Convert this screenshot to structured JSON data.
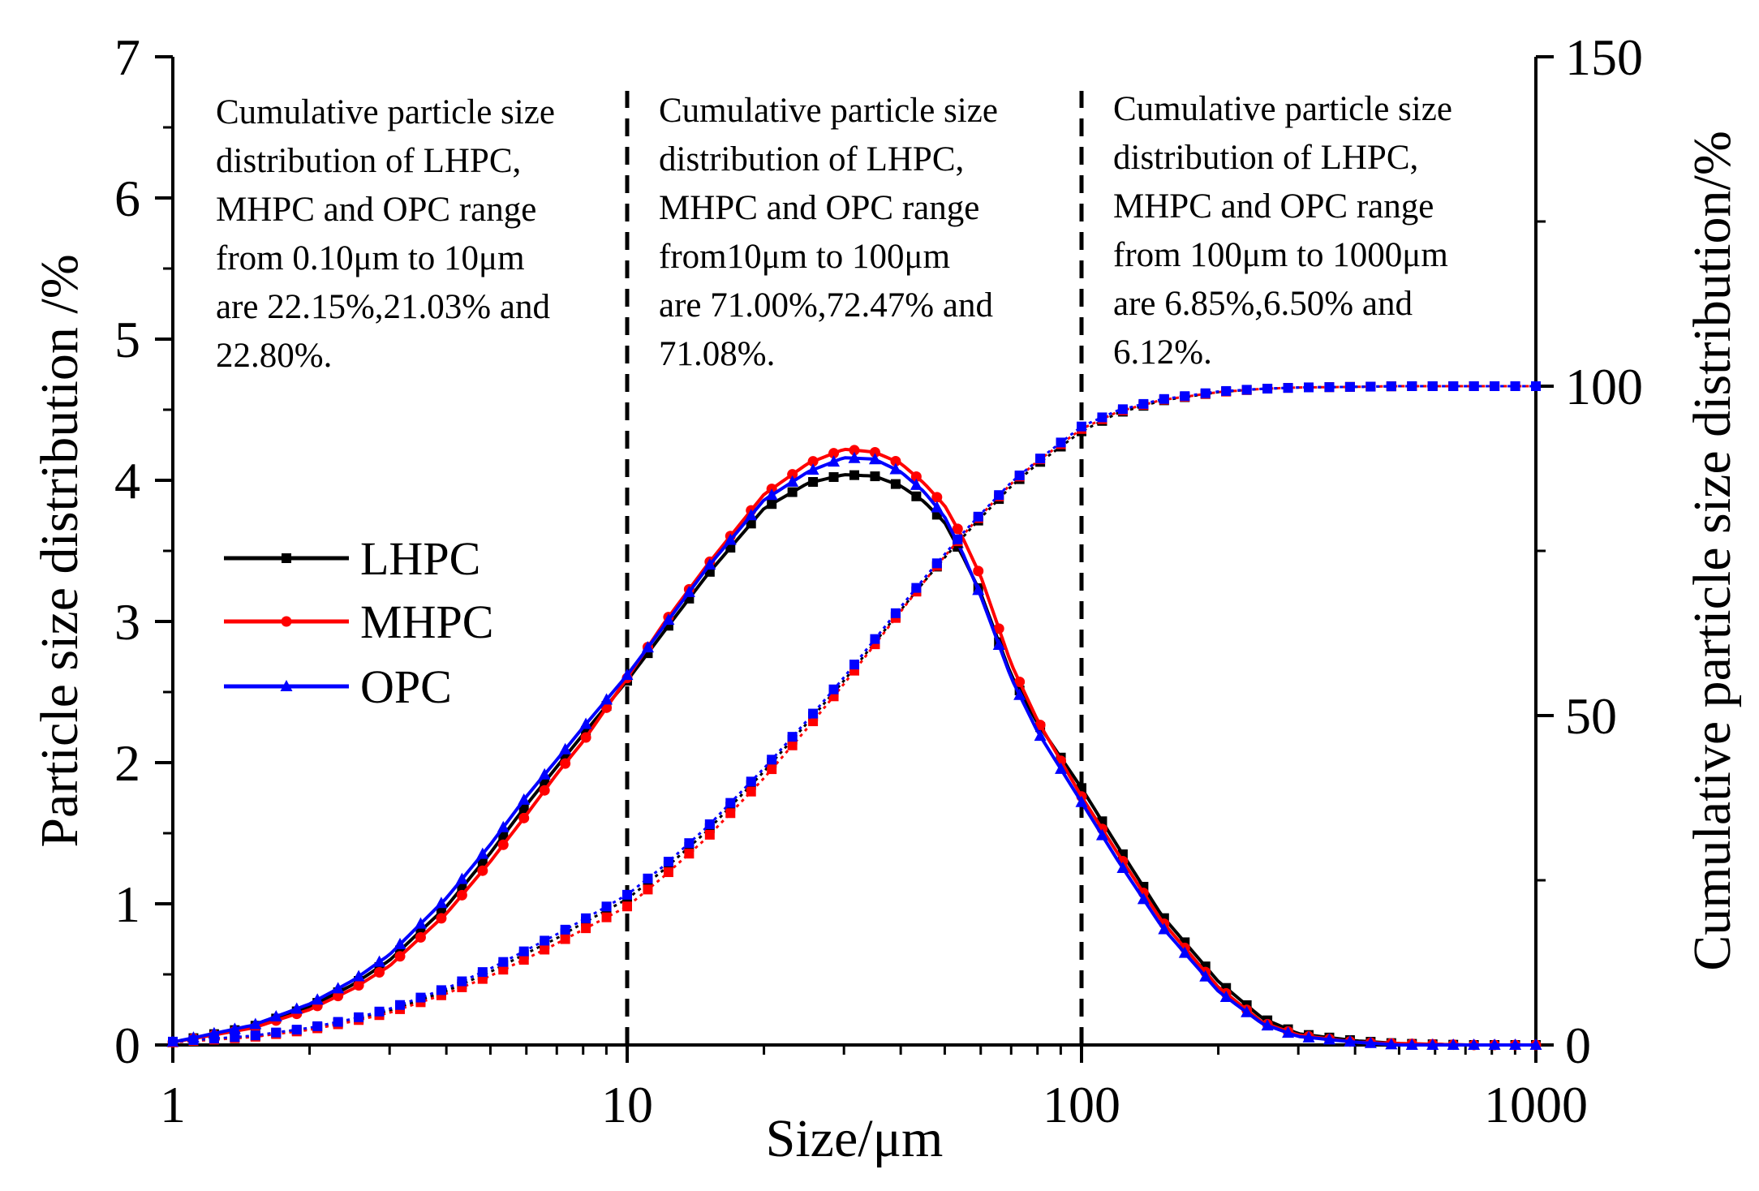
{
  "chart_data": {
    "type": "line",
    "x_scale": "log",
    "xlim": [
      1,
      1000
    ],
    "ylim": [
      0,
      7
    ],
    "y2lim": [
      0,
      150
    ],
    "xlabel": "Size/μm",
    "ylabel": "Particle size distribution /%",
    "y2label": "Cumulative particle size distribution/%",
    "x_ticks": [
      "1",
      "10",
      "100",
      "1000"
    ],
    "y_ticks": [
      "0",
      "1",
      "2",
      "3",
      "4",
      "5",
      "6",
      "7"
    ],
    "y2_ticks": [
      "0",
      "50",
      "100",
      "150"
    ],
    "vlines": [
      10,
      100
    ],
    "legend": {
      "placement": "center-left",
      "entries": [
        "LHPC",
        "MHPC",
        "OPC"
      ]
    },
    "colors": {
      "LHPC": "#000000",
      "MHPC": "#ff0000",
      "OPC": "#0000ff"
    },
    "annotations": [
      [
        "Cumulative particle size",
        " distribution of LHPC,",
        "MHPC and OPC range",
        " from 0.10μm to 10μm",
        "are 22.15%,21.03% and",
        "22.80%."
      ],
      [
        "Cumulative particle size",
        " distribution of LHPC,",
        "MHPC and OPC range",
        " from10μm to 100μm",
        "are 71.00%,72.47% and",
        "71.08%."
      ],
      [
        "Cumulative particle size",
        " distribution of LHPC,",
        "MHPC and OPC range",
        " from 100μm to 1000μm",
        "are 6.85%,6.50% and",
        "6.12%."
      ]
    ],
    "distribution": {
      "x": [
        1,
        1.5,
        2,
        2.5,
        3,
        4,
        5,
        6,
        7,
        8,
        10,
        12,
        15,
        20,
        25,
        30,
        35,
        40,
        45,
        50,
        55,
        60,
        70,
        80,
        100,
        120,
        150,
        200,
        250,
        300,
        400,
        500,
        700,
        1000
      ],
      "series": [
        {
          "name": "LHPC",
          "values": [
            0.02,
            0.13,
            0.27,
            0.43,
            0.6,
            0.98,
            1.36,
            1.7,
            1.97,
            2.2,
            2.58,
            2.92,
            3.33,
            3.8,
            3.98,
            4.04,
            4.03,
            3.96,
            3.85,
            3.7,
            3.45,
            3.2,
            2.62,
            2.28,
            1.82,
            1.41,
            0.92,
            0.45,
            0.19,
            0.08,
            0.03,
            0.01,
            0.0,
            0.0
          ]
        },
        {
          "name": "MHPC",
          "values": [
            0.02,
            0.12,
            0.25,
            0.4,
            0.56,
            0.93,
            1.3,
            1.63,
            1.92,
            2.15,
            2.6,
            2.98,
            3.4,
            3.9,
            4.12,
            4.22,
            4.2,
            4.12,
            3.98,
            3.82,
            3.58,
            3.32,
            2.7,
            2.3,
            1.76,
            1.36,
            0.88,
            0.41,
            0.16,
            0.07,
            0.02,
            0.01,
            0.0,
            0.0
          ]
        },
        {
          "name": "OPC",
          "values": [
            0.02,
            0.14,
            0.29,
            0.46,
            0.64,
            1.04,
            1.42,
            1.76,
            2.02,
            2.25,
            2.62,
            2.96,
            3.38,
            3.86,
            4.06,
            4.16,
            4.15,
            4.06,
            3.92,
            3.74,
            3.47,
            3.18,
            2.6,
            2.22,
            1.72,
            1.31,
            0.84,
            0.38,
            0.15,
            0.06,
            0.02,
            0.0,
            0.0,
            0.0
          ]
        }
      ]
    },
    "cumulative": {
      "x": [
        1,
        1.5,
        2,
        2.5,
        3,
        4,
        5,
        6,
        7,
        8,
        10,
        12,
        15,
        20,
        25,
        30,
        35,
        40,
        45,
        50,
        55,
        60,
        70,
        80,
        100,
        120,
        150,
        200,
        250,
        300,
        400,
        500,
        700,
        1000
      ],
      "series": [
        {
          "name": "LHPC",
          "values": [
            0.5,
            1.3,
            2.5,
            3.8,
            5.2,
            8.2,
            11.1,
            13.9,
            16.2,
            18.5,
            22.15,
            26.5,
            32.5,
            41.5,
            49.0,
            55.3,
            61.0,
            66.0,
            70.3,
            74.0,
            77.2,
            80.0,
            84.8,
            88.2,
            93.15,
            95.9,
            97.8,
            99.1,
            99.6,
            99.8,
            99.9,
            100,
            100,
            100
          ]
        },
        {
          "name": "MHPC",
          "values": [
            0.4,
            1.2,
            2.3,
            3.6,
            4.9,
            7.8,
            10.5,
            13.1,
            15.4,
            17.5,
            21.03,
            25.5,
            31.5,
            40.5,
            48.2,
            54.8,
            60.7,
            65.8,
            70.3,
            74.2,
            77.5,
            80.4,
            85.2,
            88.6,
            93.5,
            96.1,
            97.9,
            99.1,
            99.6,
            99.8,
            99.9,
            100,
            100,
            100
          ]
        },
        {
          "name": "OPC",
          "values": [
            0.5,
            1.4,
            2.6,
            4.0,
            5.5,
            8.6,
            11.6,
            14.4,
            16.8,
            19.0,
            22.8,
            27.1,
            33.1,
            42.0,
            49.4,
            55.8,
            61.5,
            66.5,
            70.8,
            74.5,
            77.8,
            80.6,
            85.4,
            88.7,
            93.88,
            96.3,
            98.0,
            99.2,
            99.6,
            99.8,
            99.9,
            100,
            100,
            100
          ]
        }
      ]
    }
  }
}
